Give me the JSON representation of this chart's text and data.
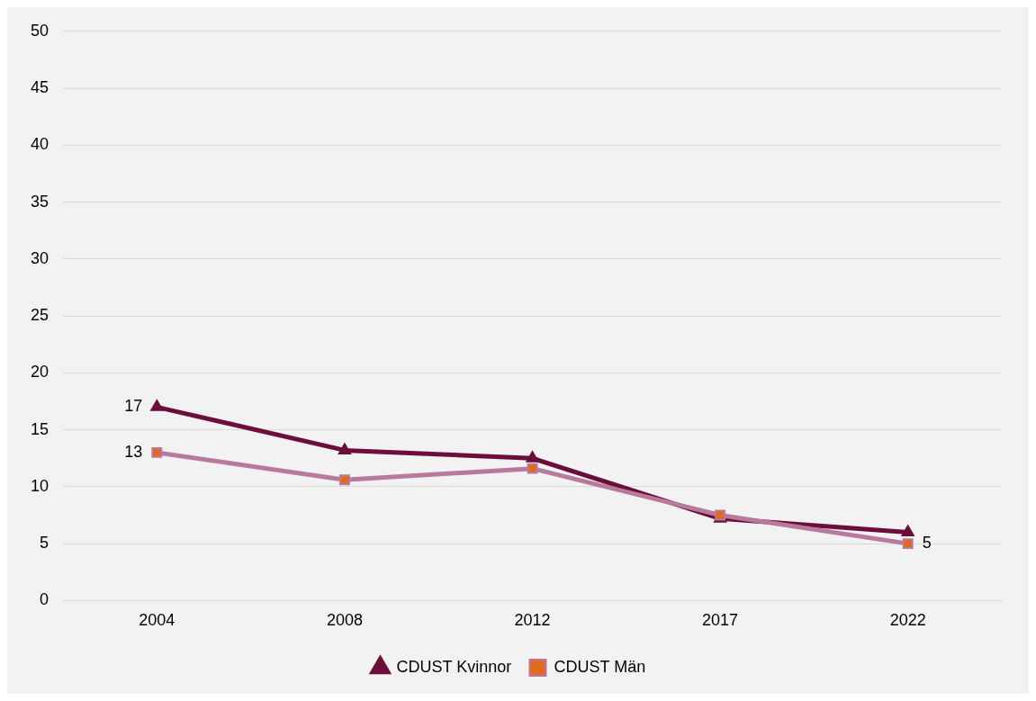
{
  "chart_data": {
    "type": "line",
    "categories": [
      "2004",
      "2008",
      "2012",
      "2017",
      "2022"
    ],
    "series": [
      {
        "name": "CDUST Kvinnor",
        "color": "#6b0f3a",
        "marker": "triangle",
        "values": [
          17,
          13.2,
          12.5,
          7.2,
          6.0
        ],
        "value_labels": [
          "17",
          null,
          null,
          null,
          null
        ]
      },
      {
        "name": "CDUST Män",
        "color": "#b87a9c",
        "colors": [
          "#e2691e",
          "#e2691e",
          "#e2691e",
          "#e2691e",
          "#e2691e"
        ],
        "marker": "square",
        "values": [
          13,
          10.6,
          11.6,
          7.5,
          5
        ],
        "value_labels": [
          "13",
          null,
          null,
          null,
          "5"
        ]
      }
    ],
    "ylim": [
      0,
      50
    ],
    "yticks": [
      0,
      5,
      10,
      15,
      20,
      25,
      30,
      35,
      40,
      45,
      50
    ],
    "grid": "y",
    "legend": "bottom",
    "line_style": "solid"
  }
}
